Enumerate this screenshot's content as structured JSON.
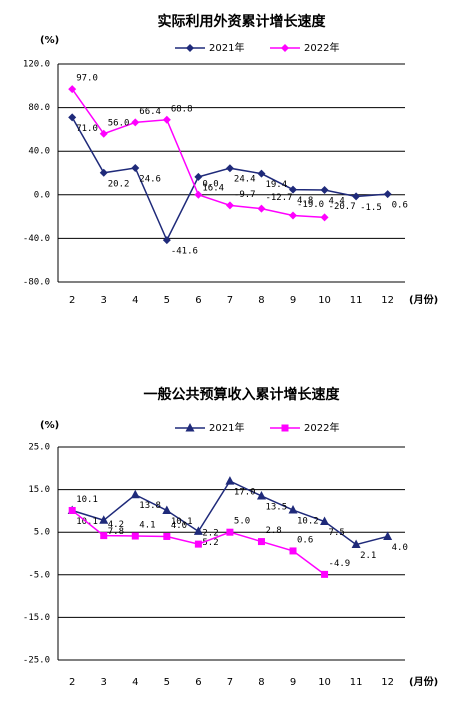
{
  "chart_data": [
    {
      "type": "line",
      "title": "实际利用外资累计增长速度",
      "y_unit": "(%)",
      "x_unit": "(月份)",
      "categories": [
        "2",
        "3",
        "4",
        "5",
        "6",
        "7",
        "8",
        "9",
        "10",
        "11",
        "12"
      ],
      "ylim": [
        -80,
        120
      ],
      "yticks": [
        {
          "value": -80,
          "label": "-80.0"
        },
        {
          "value": -40,
          "label": "-40.0"
        },
        {
          "value": 0,
          "label": "0.0"
        },
        {
          "value": 40,
          "label": "40.0"
        },
        {
          "value": 80,
          "label": "80.0"
        },
        {
          "value": 120,
          "label": "120.0"
        }
      ],
      "grid": true,
      "series": [
        {
          "name": "2021年",
          "color": "#1f2a7a",
          "marker": "diamond",
          "values": [
            71.0,
            20.2,
            24.6,
            -41.6,
            16.4,
            24.4,
            19.4,
            4.8,
            4.4,
            -1.5,
            0.6
          ],
          "value_labels": [
            "71.0",
            "20.2",
            "24.6",
            "-41.6",
            "16.4",
            "24.4",
            "19.4",
            "4.8",
            "4.4",
            "-1.5",
            "0.6"
          ]
        },
        {
          "name": "2022年",
          "color": "#ff00ff",
          "marker": "diamond",
          "values": [
            97.0,
            56.0,
            66.4,
            68.8,
            0.0,
            -9.7,
            -12.7,
            -19.0,
            -20.7,
            null,
            null
          ],
          "value_labels": [
            "97.0",
            "56.0",
            "66.4",
            "68.8",
            "0.0",
            "-9.7",
            "-12.7",
            "-19.0",
            "-20.7",
            null,
            null
          ]
        }
      ]
    },
    {
      "type": "line",
      "title": "一般公共预算收入累计增长速度",
      "y_unit": "(%)",
      "x_unit": "(月份)",
      "categories": [
        "2",
        "3",
        "4",
        "5",
        "6",
        "7",
        "8",
        "9",
        "10",
        "11",
        "12"
      ],
      "ylim": [
        -25,
        25
      ],
      "yticks": [
        {
          "value": -25,
          "label": "-25.0"
        },
        {
          "value": -15,
          "label": "-15.0"
        },
        {
          "value": -5,
          "label": "-5.0"
        },
        {
          "value": 5,
          "label": "5.0"
        },
        {
          "value": 15,
          "label": "15.0"
        },
        {
          "value": 25,
          "label": "25.0"
        }
      ],
      "grid": true,
      "series": [
        {
          "name": "2021年",
          "color": "#1f2a7a",
          "marker": "triangle",
          "values": [
            10.1,
            7.8,
            13.8,
            10.1,
            5.2,
            17.0,
            13.5,
            10.2,
            7.5,
            2.1,
            4.0
          ],
          "value_labels": [
            "10.1",
            "7.8",
            "13.8",
            "10.1",
            "5.2",
            "17.0",
            "13.5",
            "10.2",
            "7.5",
            "2.1",
            "4.0"
          ]
        },
        {
          "name": "2022年",
          "color": "#ff00ff",
          "marker": "square",
          "values": [
            10.1,
            4.2,
            4.1,
            4.0,
            2.2,
            5.0,
            2.8,
            0.6,
            -4.9,
            null,
            null
          ],
          "value_labels": [
            "10.1",
            "4.2",
            "4.1",
            "4.0",
            "2.2",
            "5.0",
            "2.8",
            "0.6",
            "-4.9",
            null,
            null
          ]
        }
      ]
    }
  ]
}
